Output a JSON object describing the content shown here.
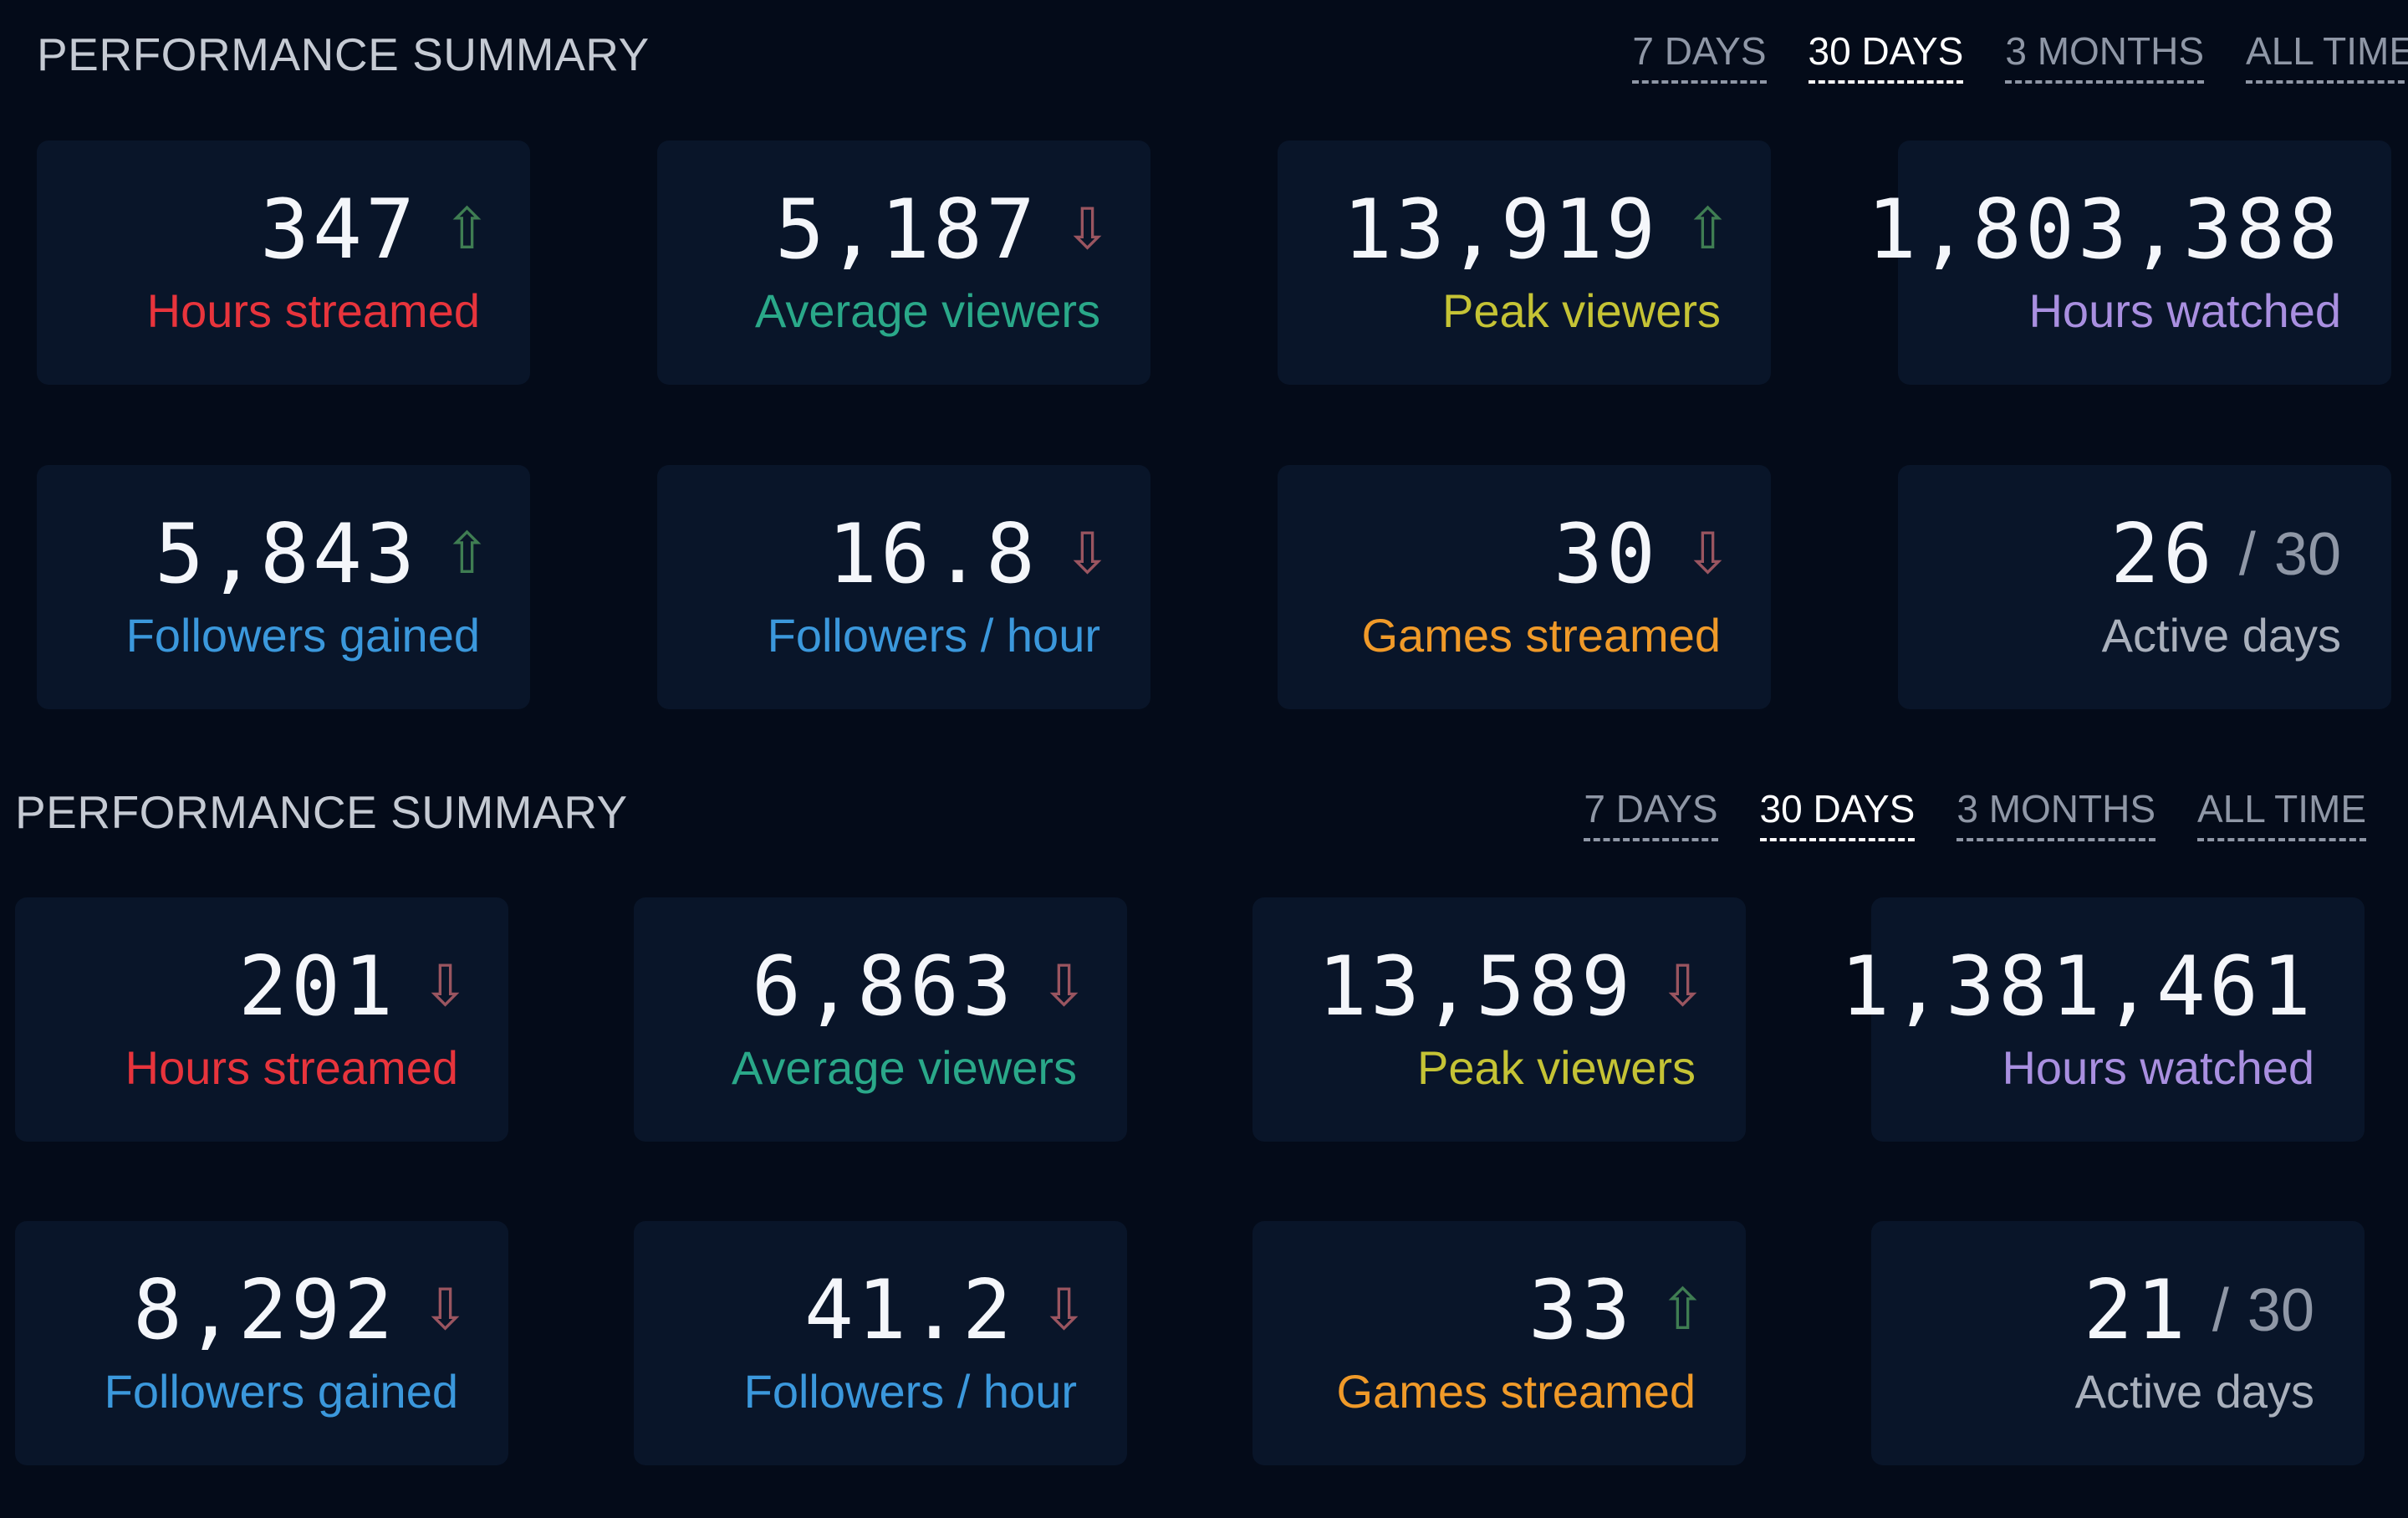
{
  "colors": {
    "hours_streamed": "#e8343c",
    "average_viewers": "#2aa889",
    "peak_viewers": "#c5c335",
    "hours_watched": "#a98fe0",
    "followers": "#3b98dc",
    "games_streamed": "#f09a29",
    "active_days": "#a9b0bc",
    "arrow_up": "#3f7d52",
    "arrow_down": "#9a5560"
  },
  "sections": [
    {
      "title": "PERFORMANCE SUMMARY",
      "tabs": [
        {
          "label": "7 DAYS",
          "active": false
        },
        {
          "label": "30 DAYS",
          "active": true
        },
        {
          "label": "3 MONTHS",
          "active": false
        },
        {
          "label": "ALL TIME",
          "active": false
        }
      ],
      "stats": [
        {
          "value": "347",
          "label": "Hours streamed",
          "trend": "up"
        },
        {
          "value": "5,187",
          "label": "Average viewers",
          "trend": "down"
        },
        {
          "value": "13,919",
          "label": "Peak viewers",
          "trend": "up"
        },
        {
          "value": "1,803,388",
          "label": "Hours watched",
          "trend": "none"
        },
        {
          "value": "5,843",
          "label": "Followers gained",
          "trend": "up"
        },
        {
          "value": "16.8",
          "label": "Followers / hour",
          "trend": "down"
        },
        {
          "value": "30",
          "label": "Games streamed",
          "trend": "down"
        },
        {
          "value": "26",
          "total": "30",
          "label": "Active days",
          "trend": "none"
        }
      ]
    },
    {
      "title": "PERFORMANCE SUMMARY",
      "tabs": [
        {
          "label": "7 DAYS",
          "active": false
        },
        {
          "label": "30 DAYS",
          "active": true
        },
        {
          "label": "3 MONTHS",
          "active": false
        },
        {
          "label": "ALL TIME",
          "active": false
        }
      ],
      "stats": [
        {
          "value": "201",
          "label": "Hours streamed",
          "trend": "down"
        },
        {
          "value": "6,863",
          "label": "Average viewers",
          "trend": "down"
        },
        {
          "value": "13,589",
          "label": "Peak viewers",
          "trend": "down"
        },
        {
          "value": "1,381,461",
          "label": "Hours watched",
          "trend": "none"
        },
        {
          "value": "8,292",
          "label": "Followers gained",
          "trend": "down"
        },
        {
          "value": "41.2",
          "label": "Followers / hour",
          "trend": "down"
        },
        {
          "value": "33",
          "label": "Games streamed",
          "trend": "up"
        },
        {
          "value": "21",
          "total": "30",
          "label": "Active days",
          "trend": "none"
        }
      ]
    }
  ]
}
